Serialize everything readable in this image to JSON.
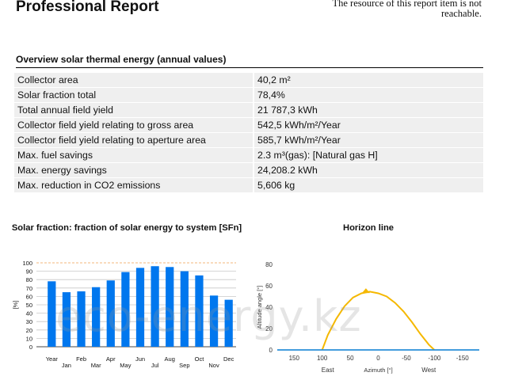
{
  "header": {
    "title": "Professional Report",
    "resource_note": "The resource of this report item is not reachable."
  },
  "overview": {
    "heading": "Overview solar thermal energy (annual values)",
    "rows": [
      {
        "label": "Collector area",
        "value": "40,2 m²"
      },
      {
        "label": "Solar fraction total",
        "value": "78,4%"
      },
      {
        "label": "Total annual field yield",
        "value": "21 787,3 kWh"
      },
      {
        "label": "Collector field yield relating to gross area",
        "value": "542,5 kWh/m²/Year"
      },
      {
        "label": "Collector field yield relating to aperture area",
        "value": "585,7 kWh/m²/Year"
      },
      {
        "label": "Max. fuel savings",
        "value": "2.3 m³(gas): [Natural gas H]"
      },
      {
        "label": "Max. energy savings",
        "value": "24,208.2 kWh"
      },
      {
        "label": "Max. reduction in CO2 emissions",
        "value": "5,606 kg"
      }
    ]
  },
  "watermark": "eco-energy.kz",
  "chart_data": [
    {
      "type": "bar",
      "title": "Solar fraction: fraction of solar energy to system [SFn]",
      "ylabel": "[%]",
      "xlabel": "",
      "ylim": [
        0,
        100
      ],
      "yticks": [
        0,
        10,
        20,
        30,
        40,
        50,
        60,
        70,
        80,
        90,
        100
      ],
      "categories": [
        "Year",
        "Jan",
        "Feb",
        "Mar",
        "Apr",
        "May",
        "Jun",
        "Jul",
        "Aug",
        "Sep",
        "Oct",
        "Nov",
        "Dec"
      ],
      "values": [
        78,
        65,
        66,
        71,
        79,
        89,
        94,
        96,
        95,
        90,
        85,
        61,
        56
      ],
      "color": "#0077ee",
      "grid": true
    },
    {
      "type": "line",
      "title": "Horizon line",
      "xlabel": "Azimuth [°]",
      "ylabel": "Altitude angle [°]",
      "xlim": [
        180,
        -180
      ],
      "ylim": [
        0,
        80
      ],
      "xticks": [
        "150",
        "100",
        "50",
        "0",
        "-50",
        "-100",
        "-150"
      ],
      "yticks": [
        "0",
        "20",
        "40",
        "60",
        "80"
      ],
      "direction_labels": [
        "East",
        "West"
      ],
      "series": [
        {
          "color": "#f5b800",
          "x": [
            100,
            90,
            75,
            60,
            45,
            30,
            15,
            0,
            -15,
            -30,
            -45,
            -60,
            -75,
            -90,
            -100
          ],
          "y": [
            0,
            14,
            29,
            41,
            49,
            53,
            54.5,
            53,
            50,
            44,
            36,
            26,
            15,
            5,
            0
          ]
        },
        {
          "color": "#2a8fd8",
          "x": [
            180,
            -180
          ],
          "y": [
            0,
            0
          ]
        }
      ],
      "marker": {
        "x": 22,
        "y": 54
      }
    }
  ]
}
